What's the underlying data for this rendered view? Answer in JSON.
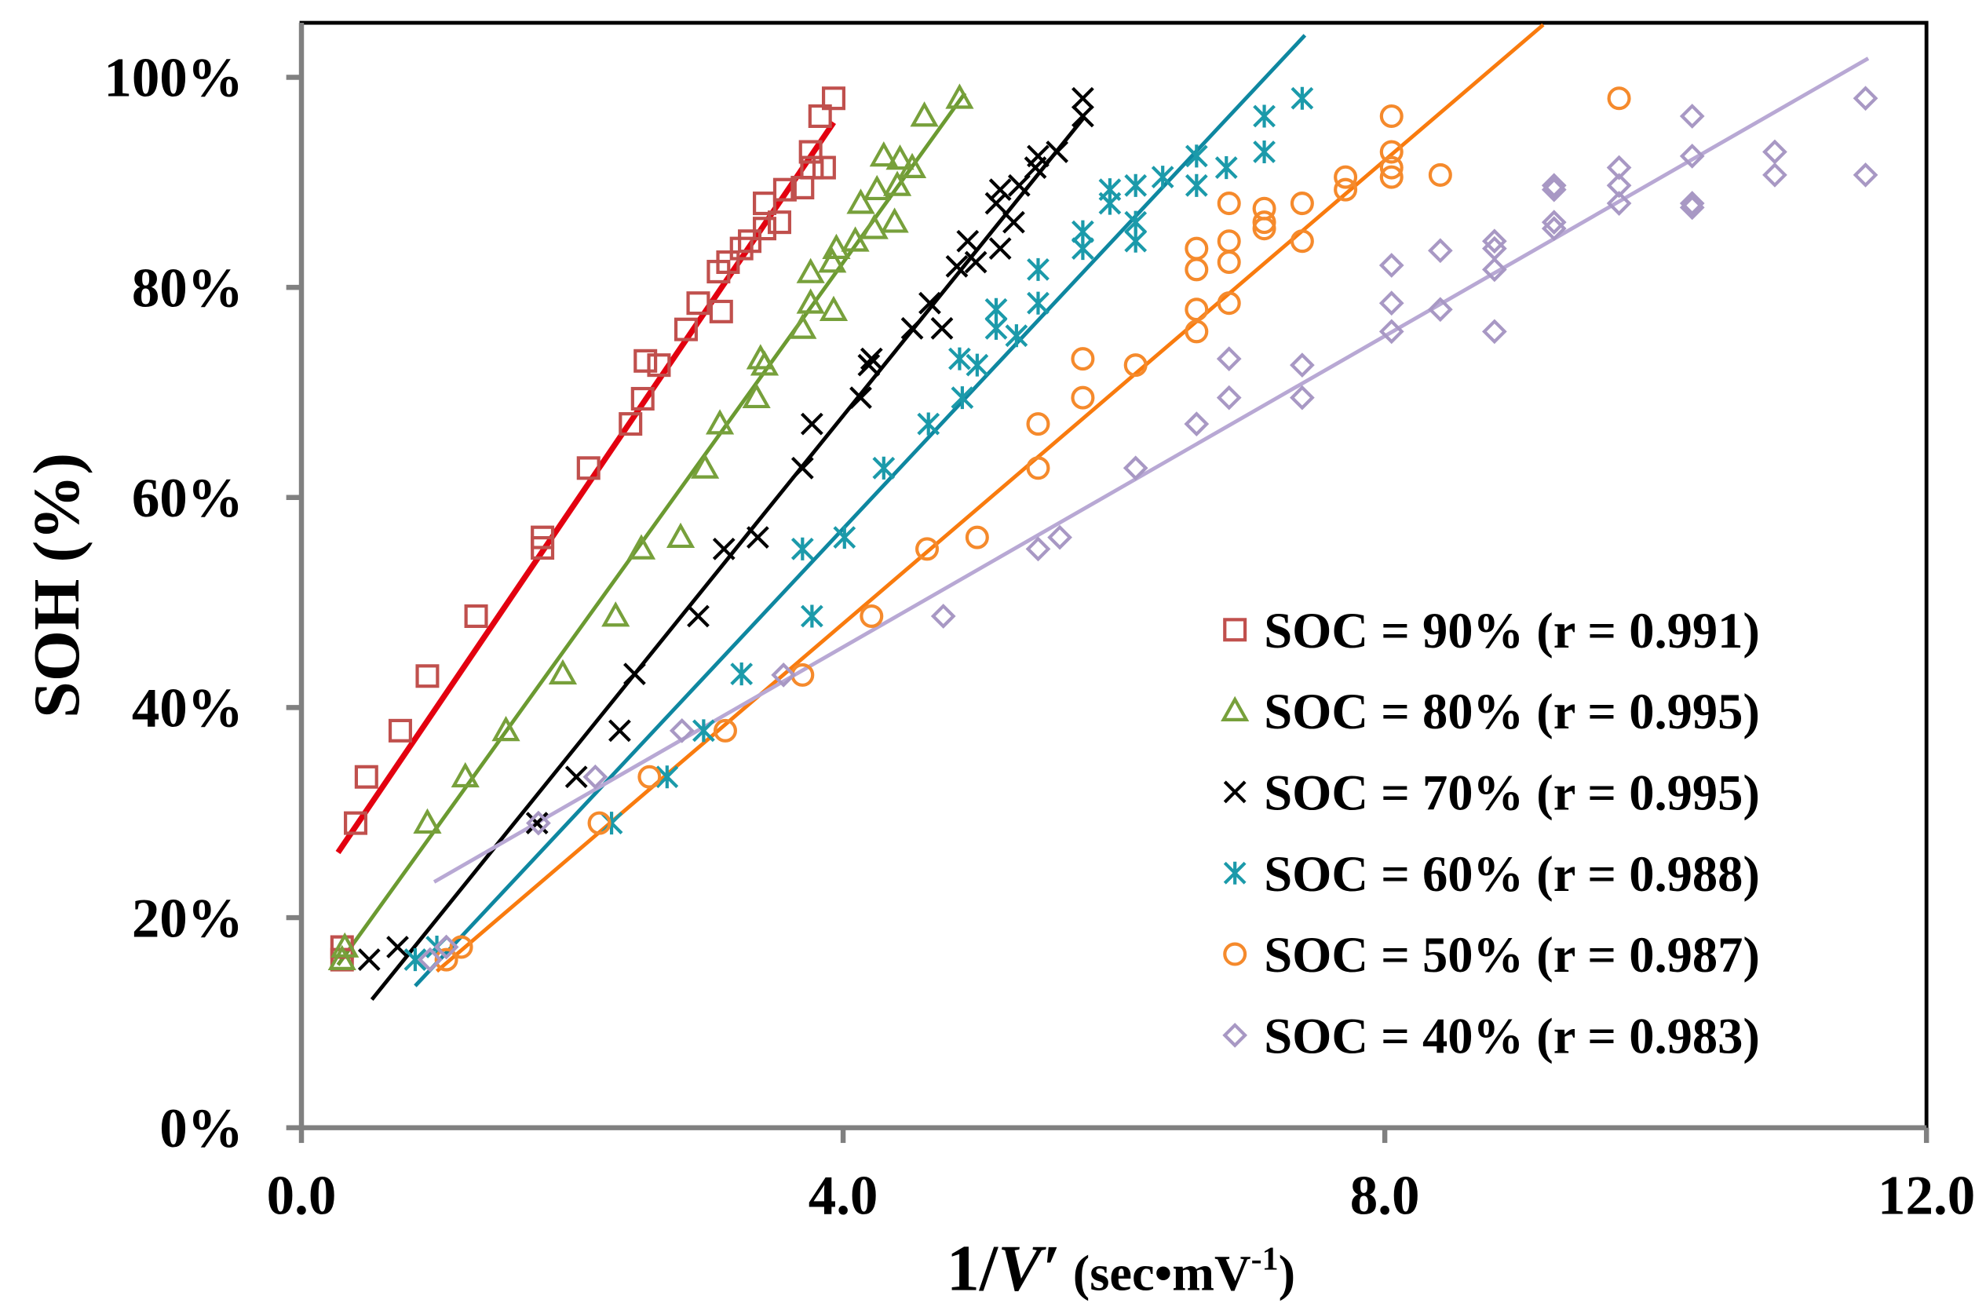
{
  "chart_data": {
    "type": "scatter",
    "title": "",
    "xlabel": {
      "prefix": "1/",
      "italic": "V′",
      "unit": " (sec•mV",
      "sup": "-1",
      "close": ")"
    },
    "ylabel": "SOH (%)",
    "xlim": [
      0,
      12
    ],
    "ylim": [
      0,
      105
    ],
    "xticks": [
      "0.0",
      "4.0",
      "8.0",
      "12.0"
    ],
    "xtick_values": [
      0,
      4,
      8,
      12
    ],
    "yticks": [
      "0%",
      "20%",
      "40%",
      "60%",
      "80%",
      "100%"
    ],
    "ytick_values": [
      0,
      20,
      40,
      60,
      80,
      100
    ],
    "grid": false,
    "legend_position": "bottom-right",
    "series": [
      {
        "name": "SOC = 90% (r = 0.991)",
        "marker": "square",
        "marker_color": "#C0504D",
        "line_color": "#E3000F",
        "fit": [
          [
            0.27,
            26.2
          ],
          [
            3.93,
            95.7
          ]
        ],
        "points": [
          [
            0.3,
            17.2
          ],
          [
            0.3,
            16
          ],
          [
            0.4,
            29
          ],
          [
            0.48,
            33.4
          ],
          [
            0.73,
            37.8
          ],
          [
            0.93,
            43
          ],
          [
            1.29,
            48.7
          ],
          [
            1.78,
            55.2
          ],
          [
            1.78,
            56.2
          ],
          [
            2.12,
            62.8
          ],
          [
            2.43,
            67
          ],
          [
            2.52,
            69.4
          ],
          [
            2.54,
            73
          ],
          [
            2.64,
            72.6
          ],
          [
            2.84,
            76
          ],
          [
            2.93,
            78.5
          ],
          [
            3.1,
            77.7
          ],
          [
            3.08,
            81.5
          ],
          [
            3.15,
            82.4
          ],
          [
            3.25,
            83.7
          ],
          [
            3.31,
            84.4
          ],
          [
            3.42,
            85.6
          ],
          [
            3.42,
            88
          ],
          [
            3.53,
            86.2
          ],
          [
            3.57,
            89.3
          ],
          [
            3.7,
            89.5
          ],
          [
            3.76,
            92.9
          ],
          [
            3.77,
            91.4
          ],
          [
            3.86,
            91.4
          ],
          [
            3.83,
            96.3
          ],
          [
            3.93,
            98
          ]
        ]
      },
      {
        "name": "SOC = 80% (r = 0.995)",
        "marker": "triangle",
        "marker_color": "#77A03B",
        "line_color": "#6B9A31",
        "fit": [
          [
            0.27,
            15.5
          ],
          [
            4.9,
            98.5
          ]
        ],
        "points": [
          [
            0.3,
            16
          ],
          [
            0.32,
            17.2
          ],
          [
            0.93,
            29
          ],
          [
            1.21,
            33.4
          ],
          [
            1.51,
            37.8
          ],
          [
            1.93,
            43.2
          ],
          [
            2.32,
            48.7
          ],
          [
            2.51,
            55.1
          ],
          [
            2.8,
            56.2
          ],
          [
            2.98,
            62.8
          ],
          [
            3.09,
            67
          ],
          [
            3.36,
            69.5
          ],
          [
            3.39,
            73.2
          ],
          [
            3.42,
            72.6
          ],
          [
            3.7,
            76.1
          ],
          [
            3.76,
            78.5
          ],
          [
            3.93,
            77.8
          ],
          [
            3.76,
            81.4
          ],
          [
            3.92,
            82.4
          ],
          [
            3.95,
            83.7
          ],
          [
            4.09,
            84.4
          ],
          [
            4.23,
            85.6
          ],
          [
            4.13,
            88
          ],
          [
            4.38,
            86.2
          ],
          [
            4.25,
            89.3
          ],
          [
            4.4,
            89.7
          ],
          [
            4.51,
            91.4
          ],
          [
            4.3,
            92.5
          ],
          [
            4.42,
            92.2
          ],
          [
            4.6,
            96.3
          ],
          [
            4.86,
            98
          ]
        ]
      },
      {
        "name": "SOC = 70% (r = 0.995)",
        "marker": "x",
        "marker_color": "#000000",
        "line_color": "#000000",
        "fit": [
          [
            0.52,
            12.2
          ],
          [
            5.78,
            96.2
          ]
        ],
        "points": [
          [
            0.5,
            16
          ],
          [
            0.71,
            17.2
          ],
          [
            1.74,
            29
          ],
          [
            2.03,
            33.4
          ],
          [
            2.35,
            37.8
          ],
          [
            2.46,
            43.2
          ],
          [
            2.93,
            48.7
          ],
          [
            3.12,
            55.1
          ],
          [
            3.37,
            56.2
          ],
          [
            3.7,
            62.8
          ],
          [
            3.77,
            67
          ],
          [
            4.13,
            69.5
          ],
          [
            4.21,
            73.2
          ],
          [
            4.19,
            72.6
          ],
          [
            4.51,
            76.1
          ],
          [
            4.64,
            78.5
          ],
          [
            4.73,
            76.1
          ],
          [
            4.84,
            82
          ],
          [
            4.98,
            82.4
          ],
          [
            4.92,
            84.4
          ],
          [
            5.16,
            83.7
          ],
          [
            5.13,
            88
          ],
          [
            5.26,
            86.2
          ],
          [
            5.16,
            89.3
          ],
          [
            5.3,
            89.7
          ],
          [
            5.42,
            91.4
          ],
          [
            5.44,
            92.5
          ],
          [
            5.58,
            92.9
          ],
          [
            5.77,
            96.3
          ],
          [
            5.77,
            98
          ]
        ]
      },
      {
        "name": "SOC = 60% (r = 0.988)",
        "marker": "asterisk",
        "marker_color": "#1B9AAA",
        "line_color": "#0E87A0",
        "fit": [
          [
            0.84,
            13.5
          ],
          [
            7.41,
            104
          ]
        ],
        "points": [
          [
            0.84,
            16
          ],
          [
            1.0,
            17.2
          ],
          [
            2.29,
            29
          ],
          [
            2.7,
            33.4
          ],
          [
            2.97,
            37.8
          ],
          [
            3.25,
            43.2
          ],
          [
            3.77,
            48.7
          ],
          [
            3.7,
            55.1
          ],
          [
            4.01,
            56.2
          ],
          [
            4.3,
            62.8
          ],
          [
            4.63,
            67
          ],
          [
            4.88,
            69.5
          ],
          [
            4.86,
            73.2
          ],
          [
            4.99,
            72.6
          ],
          [
            5.28,
            75.4
          ],
          [
            5.13,
            76.1
          ],
          [
            5.44,
            78.5
          ],
          [
            5.13,
            77.9
          ],
          [
            5.44,
            81.7
          ],
          [
            5.77,
            85.3
          ],
          [
            5.77,
            83.7
          ],
          [
            5.97,
            88
          ],
          [
            6.16,
            86.2
          ],
          [
            5.97,
            89.3
          ],
          [
            6.16,
            89.7
          ],
          [
            6.16,
            84.4
          ],
          [
            6.36,
            90.5
          ],
          [
            6.61,
            92.5
          ],
          [
            6.61,
            89.7
          ],
          [
            6.83,
            91.4
          ],
          [
            7.11,
            96.3
          ],
          [
            7.11,
            92.9
          ],
          [
            7.39,
            98
          ]
        ]
      },
      {
        "name": "SOC = 50% (r = 0.987)",
        "marker": "circle",
        "marker_color": "#F58A2C",
        "line_color": "#F97B0E",
        "fit": [
          [
            1.0,
            14.9
          ],
          [
            9.17,
            105
          ]
        ],
        "points": [
          [
            1.07,
            16
          ],
          [
            1.18,
            17.2
          ],
          [
            2.2,
            29
          ],
          [
            2.57,
            33.4
          ],
          [
            3.13,
            37.8
          ],
          [
            3.7,
            43.1
          ],
          [
            4.21,
            48.7
          ],
          [
            4.62,
            55.1
          ],
          [
            4.99,
            56.2
          ],
          [
            5.44,
            62.8
          ],
          [
            5.44,
            67
          ],
          [
            5.77,
            69.5
          ],
          [
            5.77,
            73.2
          ],
          [
            6.16,
            72.6
          ],
          [
            6.61,
            75.8
          ],
          [
            6.61,
            77.9
          ],
          [
            6.85,
            78.5
          ],
          [
            6.61,
            81.7
          ],
          [
            6.61,
            83.7
          ],
          [
            6.85,
            82.4
          ],
          [
            6.85,
            84.4
          ],
          [
            7.11,
            85.6
          ],
          [
            7.11,
            86.2
          ],
          [
            7.11,
            87.5
          ],
          [
            6.85,
            88
          ],
          [
            7.39,
            88
          ],
          [
            7.39,
            84.4
          ],
          [
            7.71,
            89.3
          ],
          [
            7.71,
            90.5
          ],
          [
            8.05,
            90.5
          ],
          [
            8.05,
            91.4
          ],
          [
            8.05,
            92.9
          ],
          [
            8.41,
            90.7
          ],
          [
            8.05,
            96.3
          ],
          [
            9.73,
            98
          ]
        ]
      },
      {
        "name": "SOC = 40% (r = 0.983)",
        "marker": "diamond",
        "marker_color": "#A898C4",
        "line_color": "#B8A8D4",
        "fit": [
          [
            0.98,
            23.4
          ],
          [
            11.57,
            101.8
          ]
        ],
        "points": [
          [
            0.95,
            16
          ],
          [
            1.07,
            17.2
          ],
          [
            1.75,
            29
          ],
          [
            2.17,
            33.4
          ],
          [
            2.81,
            37.8
          ],
          [
            3.56,
            43.1
          ],
          [
            4.74,
            48.7
          ],
          [
            5.44,
            55.1
          ],
          [
            5.6,
            56.2
          ],
          [
            6.16,
            62.8
          ],
          [
            6.61,
            67
          ],
          [
            6.85,
            69.5
          ],
          [
            7.39,
            69.5
          ],
          [
            6.85,
            73.2
          ],
          [
            7.39,
            72.6
          ],
          [
            8.05,
            75.8
          ],
          [
            8.81,
            75.8
          ],
          [
            8.05,
            78.5
          ],
          [
            8.41,
            77.9
          ],
          [
            8.05,
            82.1
          ],
          [
            8.41,
            83.5
          ],
          [
            8.81,
            81.7
          ],
          [
            8.81,
            83.7
          ],
          [
            8.81,
            84.4
          ],
          [
            9.25,
            85.6
          ],
          [
            9.25,
            86.2
          ],
          [
            9.25,
            89.3
          ],
          [
            9.25,
            89.7
          ],
          [
            9.73,
            88
          ],
          [
            9.73,
            89.7
          ],
          [
            9.73,
            91.4
          ],
          [
            10.27,
            88
          ],
          [
            10.27,
            87.6
          ],
          [
            10.27,
            92.5
          ],
          [
            10.27,
            96.3
          ],
          [
            10.88,
            90.7
          ],
          [
            10.88,
            92.9
          ],
          [
            11.55,
            90.7
          ],
          [
            11.55,
            98
          ]
        ]
      }
    ]
  }
}
